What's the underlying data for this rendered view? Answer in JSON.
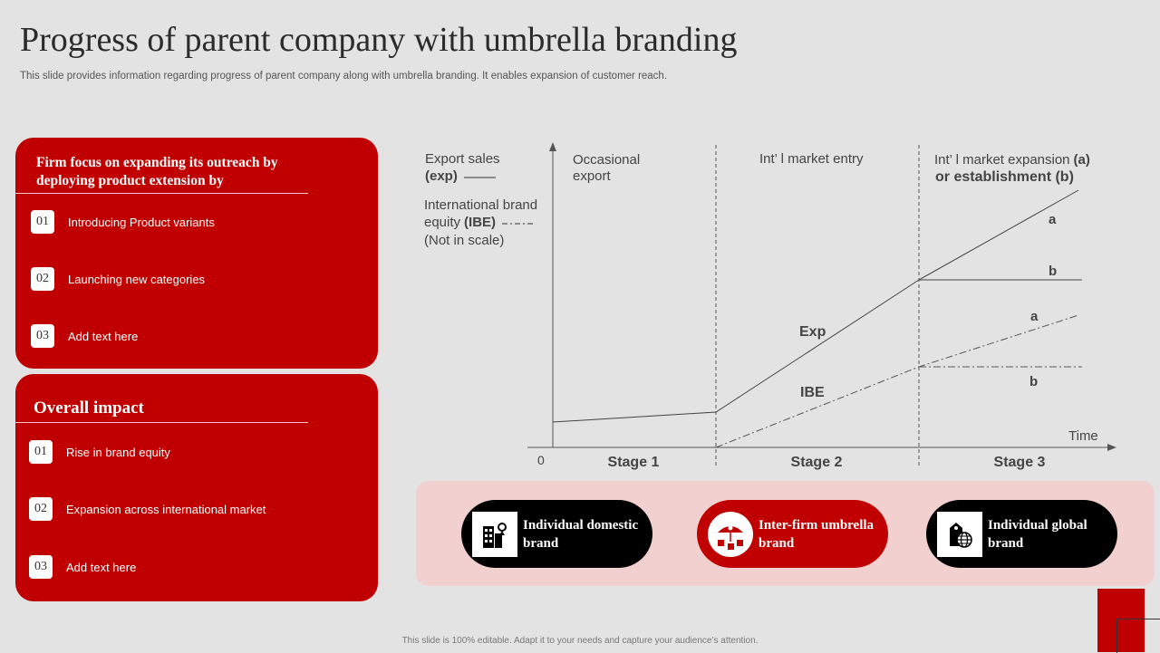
{
  "title": "Progress of parent company with umbrella branding",
  "subtitle": "This slide provides information regarding progress of parent company along with umbrella branding. It enables expansion of customer reach.",
  "panel1": {
    "heading": "Firm focus on expanding its outreach by deploying product extension by",
    "items": [
      {
        "num": "01",
        "label": "Introducing Product variants"
      },
      {
        "num": "02",
        "label": "Launching new categories"
      },
      {
        "num": "03",
        "label": "Add text here"
      }
    ]
  },
  "panel2": {
    "heading": "Overall impact",
    "items": [
      {
        "num": "01",
        "label": "Rise in brand equity"
      },
      {
        "num": "02",
        "label": "Expansion across international market"
      },
      {
        "num": "03",
        "label": "Add text here"
      }
    ]
  },
  "chart": {
    "legend_exp_line1": "Export sales",
    "legend_exp_line2": "(exp)",
    "legend_ibe_line1": "International brand",
    "legend_ibe_line2": "equity",
    "legend_ibe_bold": "(IBE)",
    "legend_ibe_line3": "(Not in scale)",
    "zone1_line1": "Occasional",
    "zone1_line2": "export",
    "zone2_label": "Int’ l market entry",
    "zone3_line1": "Int’ l market expansion",
    "zone3_line1_bold": "(a)",
    "zone3_line2": "or establishment (b)",
    "stage1": "Stage 1",
    "stage2": "Stage 2",
    "stage3": "Stage 3",
    "origin": "0",
    "x_axis_label": "Time",
    "exp_label": "Exp",
    "ibe_label": "IBE",
    "exp_a": "a",
    "exp_b": "b",
    "ibe_a": "a",
    "ibe_b": "b"
  },
  "brands": [
    {
      "label": "Individual domestic brand",
      "icon": "buildings-person-icon",
      "color": "#000000"
    },
    {
      "label": "Inter-firm umbrella brand",
      "icon": "umbrella-boxes-icon",
      "color": "#c00000"
    },
    {
      "label": "Individual global brand",
      "icon": "tag-globe-icon",
      "color": "#000000"
    }
  ],
  "footer": "This slide is 100% editable. Adapt it to your needs and capture your audience’s attention.",
  "colors": {
    "accent": "#c00000",
    "background": "#e3e3e3",
    "pink_panel": "#f3d0d0"
  }
}
